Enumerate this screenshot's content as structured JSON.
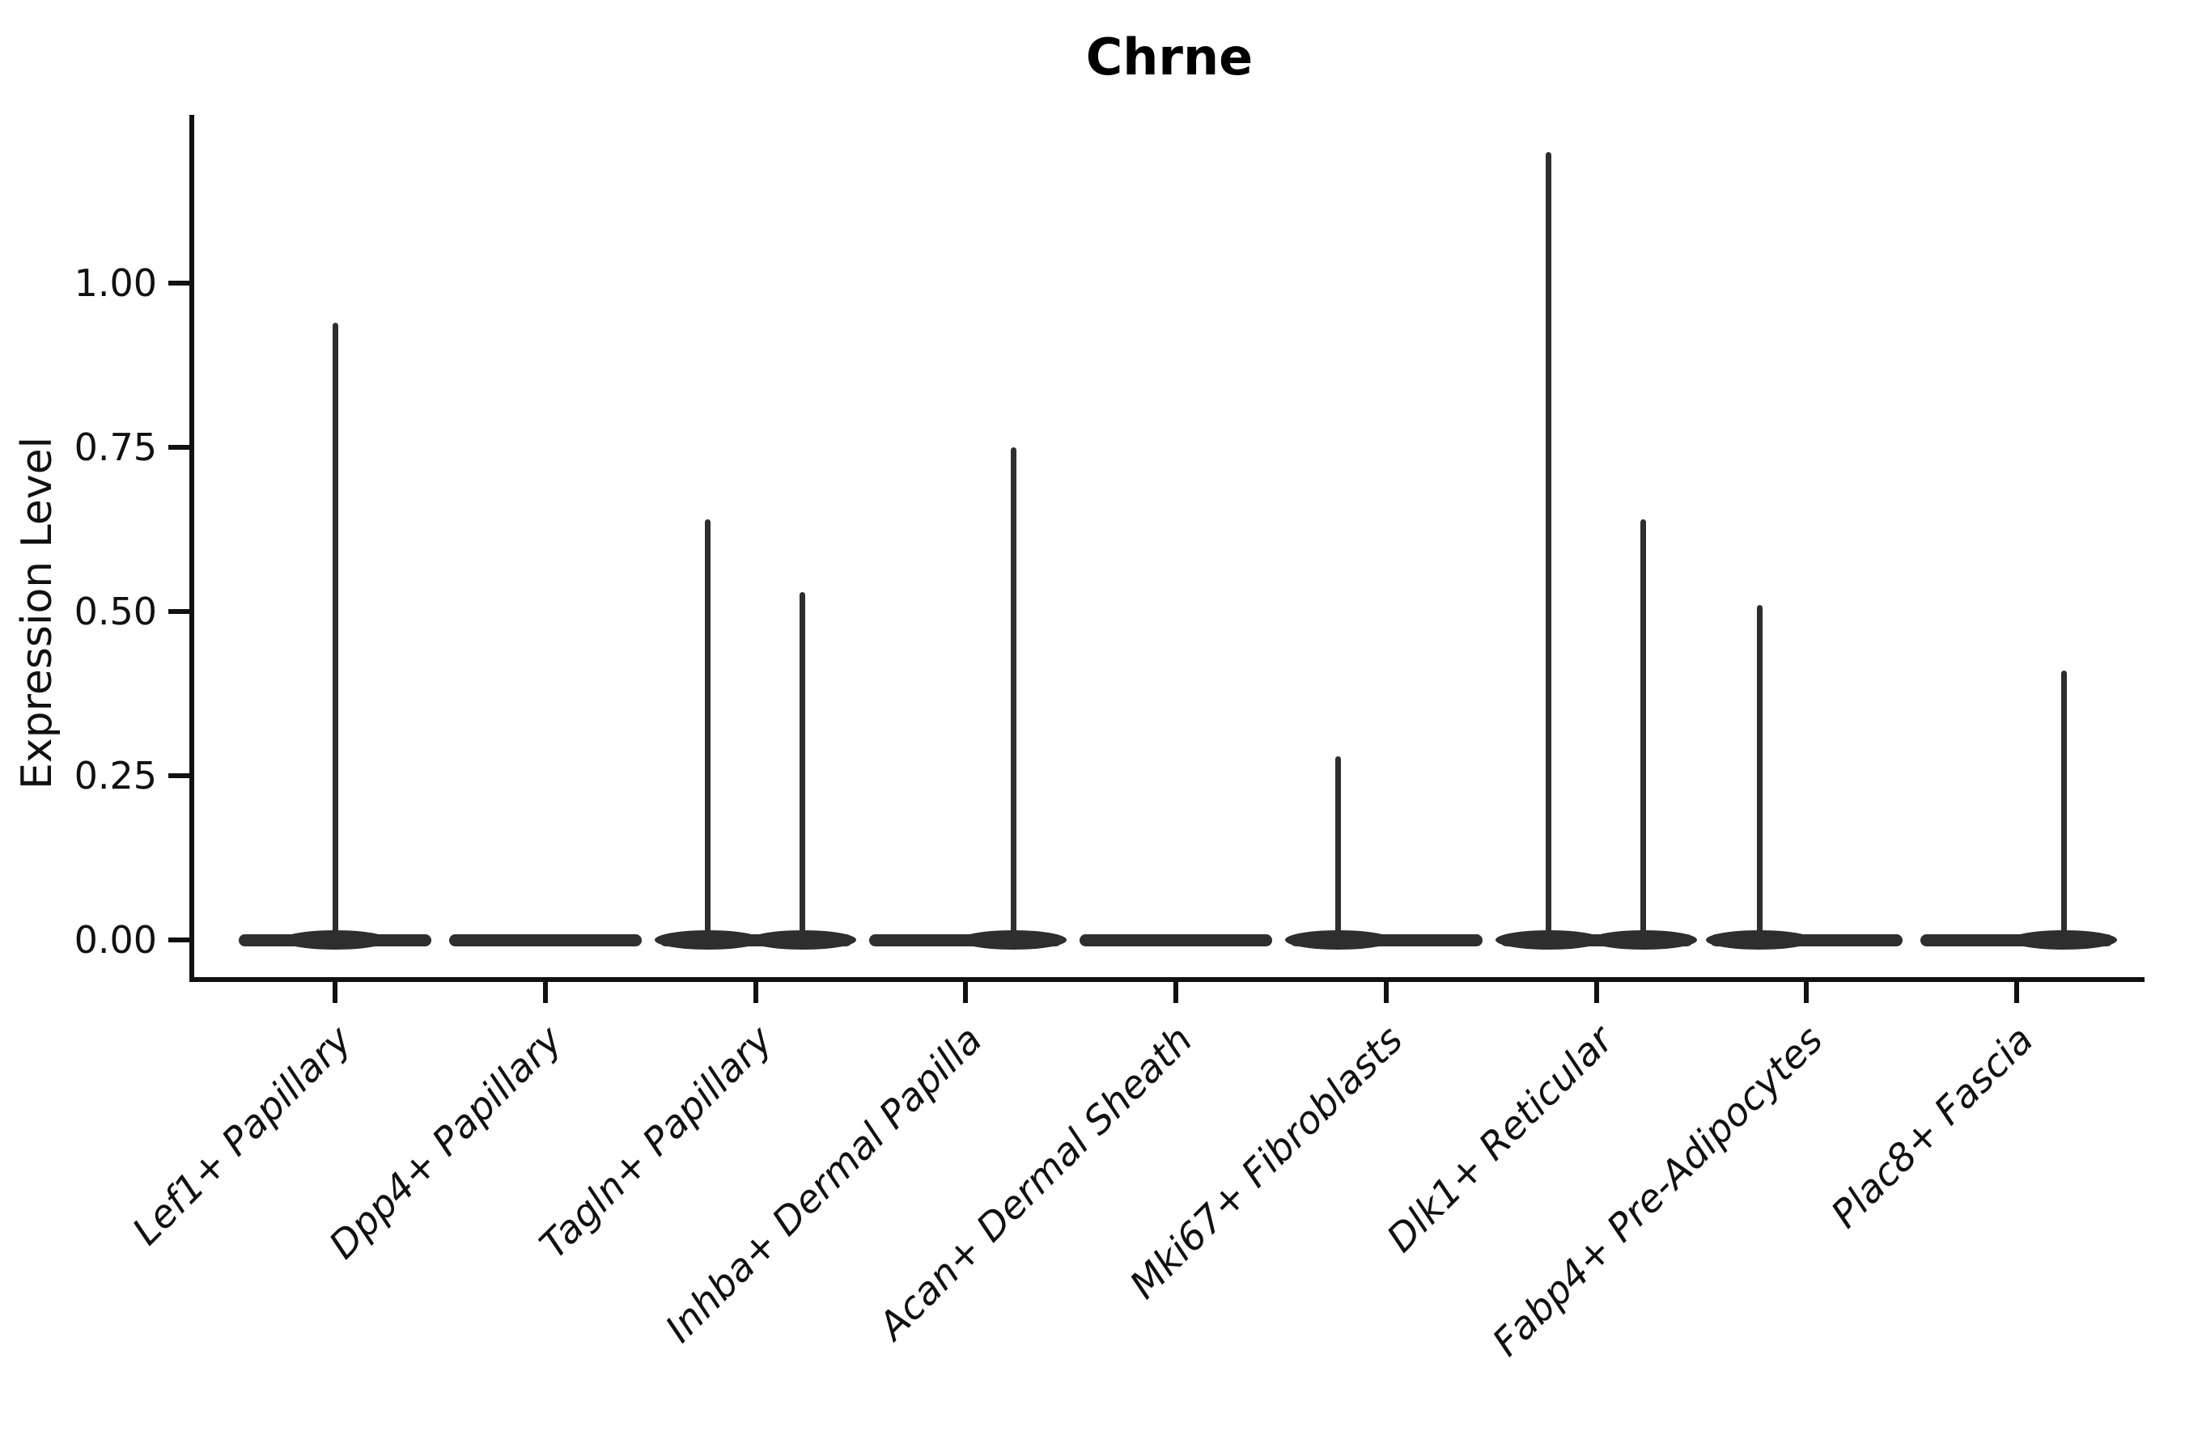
{
  "chart_data": {
    "type": "violin",
    "title": "Chrne",
    "xlabel": "",
    "ylabel": "Expression Level",
    "ylim": [
      -0.06,
      1.25
    ],
    "grid": false,
    "legend": "none",
    "ytick_labels": [
      "0.00",
      "0.25",
      "0.50",
      "0.75",
      "1.00"
    ],
    "yticks": [
      0.0,
      0.25,
      0.5,
      0.75,
      1.0
    ],
    "categories": [
      "Lef1+ Papillary",
      "Dpp4+ Papillary",
      "Tagln+ Papillary",
      "Inhba+ Dermal Papilla",
      "Acan+ Dermal Sheath",
      "Mki67+ Fibroblasts",
      "Dlk1+ Reticular",
      "Fabp4+ Pre-Adipocytes",
      "Plac8+ Fascia"
    ],
    "violins": [
      {
        "category": "Lef1+ Papillary",
        "baseline": 0.0,
        "needles": [
          {
            "offset": 0.0,
            "max": 0.94
          }
        ]
      },
      {
        "category": "Dpp4+ Papillary",
        "baseline": 0.0,
        "needles": []
      },
      {
        "category": "Tagln+ Papillary",
        "baseline": 0.0,
        "needles": [
          {
            "offset": -0.227,
            "max": 0.64
          },
          {
            "offset": 0.224,
            "max": 0.53
          }
        ]
      },
      {
        "category": "Inhba+ Dermal Papilla",
        "baseline": 0.0,
        "needles": [
          {
            "offset": 0.227,
            "max": 0.75
          }
        ]
      },
      {
        "category": "Acan+ Dermal Sheath",
        "baseline": 0.0,
        "needles": []
      },
      {
        "category": "Mki67+ Fibroblasts",
        "baseline": 0.0,
        "needles": [
          {
            "offset": -0.227,
            "max": 0.28
          }
        ]
      },
      {
        "category": "Dlk1+ Reticular",
        "baseline": 0.0,
        "needles": [
          {
            "offset": -0.227,
            "max": 1.2
          },
          {
            "offset": 0.224,
            "max": 0.64
          }
        ]
      },
      {
        "category": "Fabp4+ Pre-Adipocytes",
        "baseline": 0.0,
        "needles": [
          {
            "offset": -0.224,
            "max": 0.51
          }
        ]
      },
      {
        "category": "Plac8+ Fascia",
        "baseline": 0.0,
        "needles": [
          {
            "offset": 0.224,
            "max": 0.41
          }
        ]
      }
    ],
    "colors": {
      "ink": "#111111",
      "violin": "#2e2e2e"
    }
  }
}
